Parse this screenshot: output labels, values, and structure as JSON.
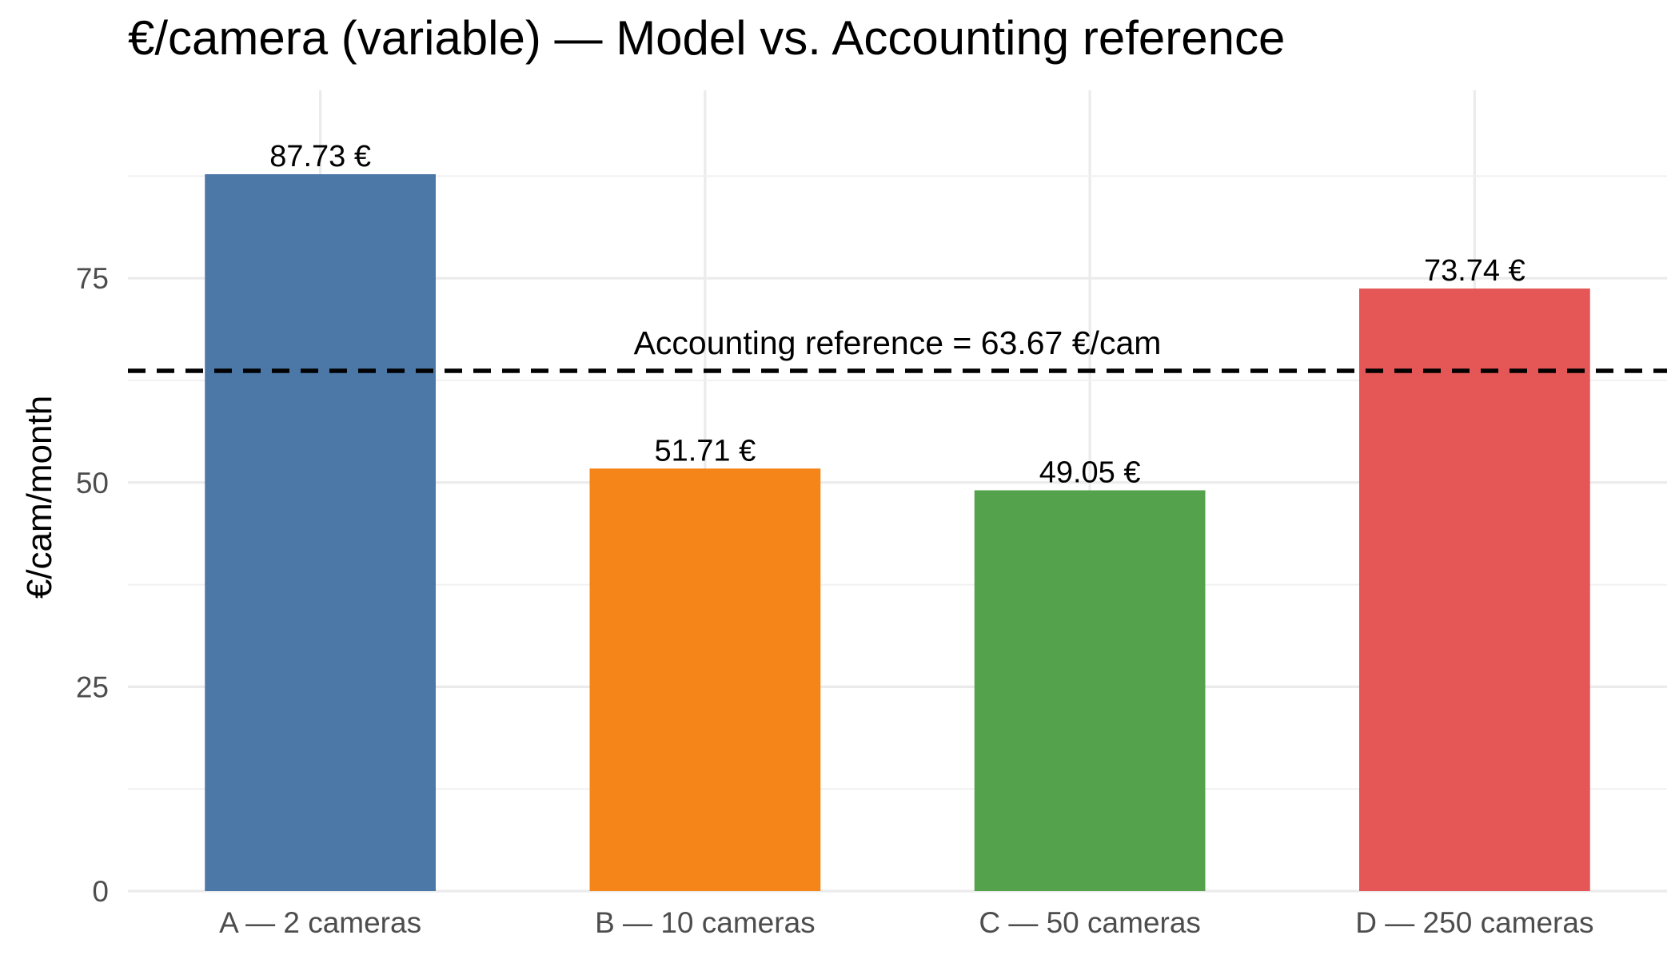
{
  "chart_data": {
    "type": "bar",
    "title": "€/camera (variable) — Model vs. Accounting reference",
    "xlabel": "",
    "ylabel": "€/cam/month",
    "categories": [
      "A — 2 cameras",
      "B — 10 cameras",
      "C — 50 cameras",
      "D — 250 cameras"
    ],
    "values": [
      87.73,
      51.71,
      49.05,
      73.74
    ],
    "value_labels": [
      "87.73 €",
      "51.71 €",
      "49.05 €",
      "73.74 €"
    ],
    "colors": [
      "#4C78A8",
      "#F58518",
      "#54A24B",
      "#E45756"
    ],
    "ylim": [
      0,
      98
    ],
    "yticks": [
      0,
      25,
      50,
      75
    ],
    "grid": true,
    "reference_line": {
      "value": 63.67,
      "label": "Accounting reference = 63.67 €/cam",
      "style": "dashed",
      "color": "#000000"
    }
  }
}
